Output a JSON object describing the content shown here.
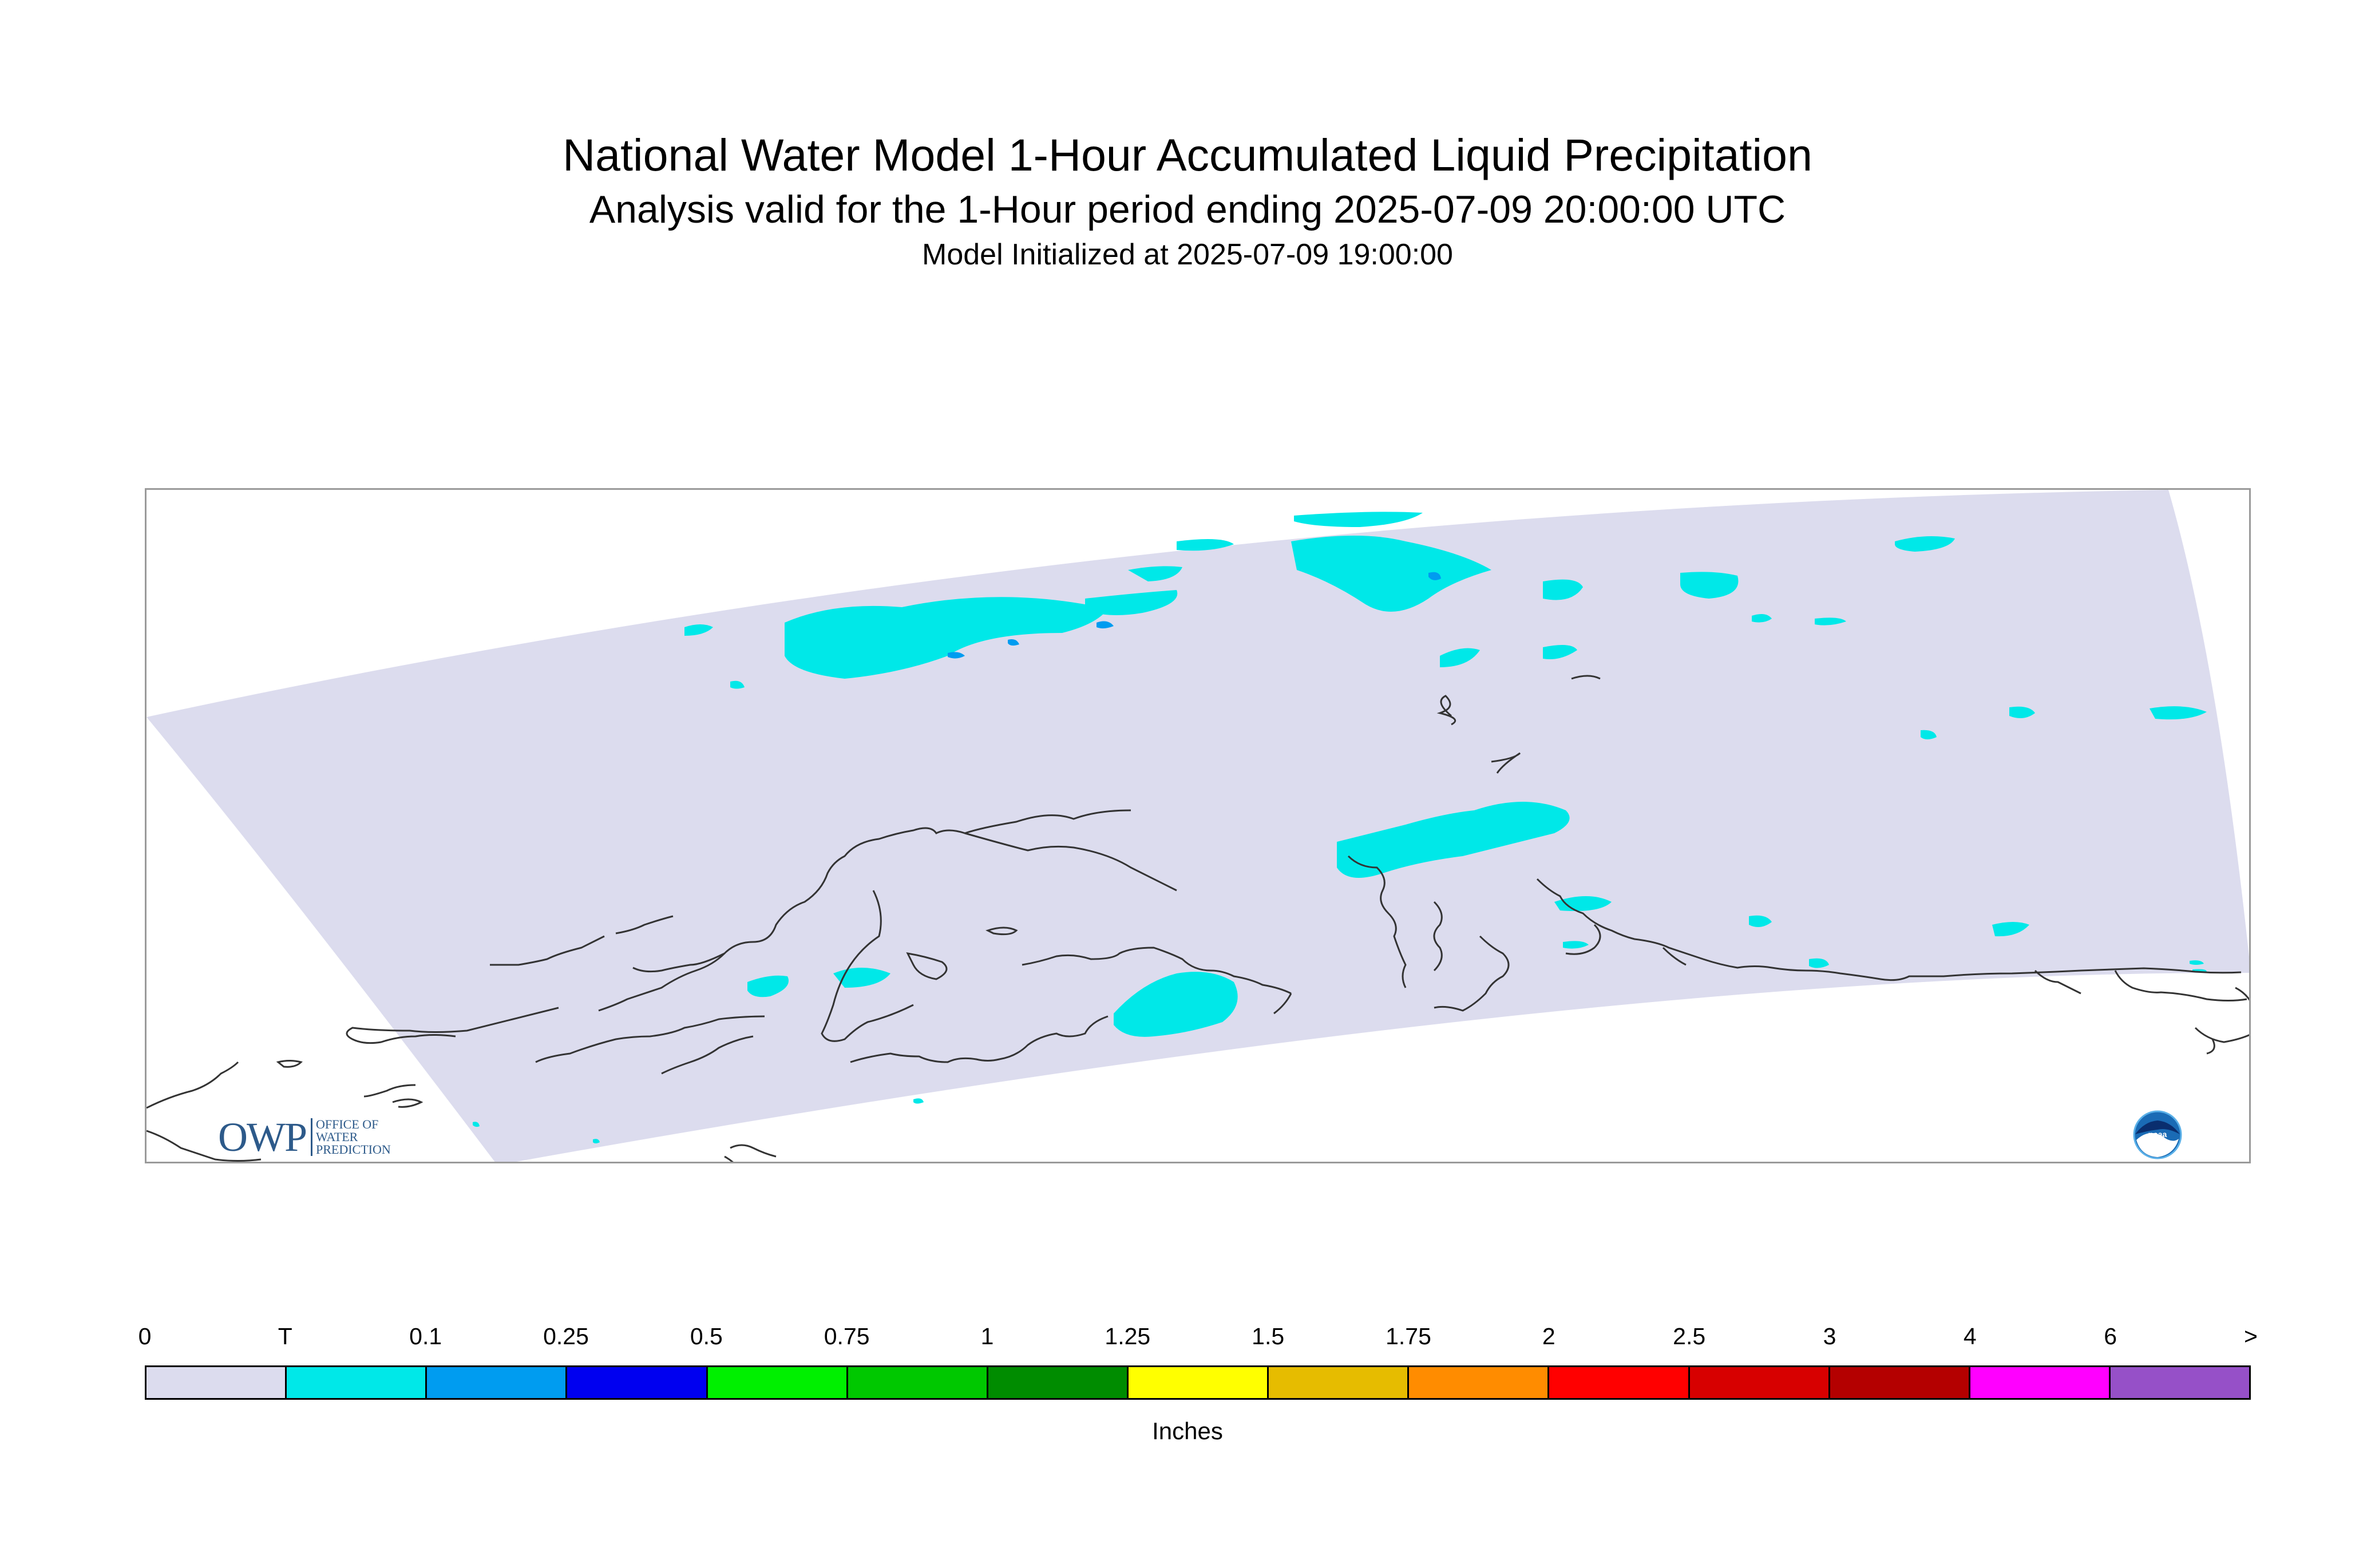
{
  "header": {
    "title": "National Water Model 1-Hour Accumulated Liquid Precipitation",
    "subtitle": "Analysis valid for the 1-Hour period ending 2025-07-09 20:00:00 UTC",
    "init": "Model Initialized at 2025-07-09 19:00:00"
  },
  "legend": {
    "units": "Inches",
    "labels": [
      "0",
      "T",
      "0.1",
      "0.25",
      "0.5",
      "0.75",
      "1",
      "1.25",
      "1.5",
      "1.75",
      "2",
      "2.5",
      "3",
      "4",
      "6",
      ">"
    ],
    "colors": [
      "#dcdcee",
      "#00e8e8",
      "#009cf0",
      "#0000f0",
      "#00f000",
      "#00c800",
      "#008c00",
      "#ffff00",
      "#e6bc00",
      "#ff8c00",
      "#ff0000",
      "#d70000",
      "#b40000",
      "#ff00ff",
      "#9650c8"
    ]
  },
  "map": {
    "domain_fill": "#dcdcee",
    "coast_color": "#333333",
    "precip_color": "#00e8e8",
    "heavy_color": "#009cf0"
  },
  "logos": {
    "owp_mark": "OWP",
    "owp_line1": "OFFICE OF",
    "owp_line2": "WATER",
    "owp_line3": "PREDICTION",
    "noaa_icon": "noaa-logo-icon"
  }
}
